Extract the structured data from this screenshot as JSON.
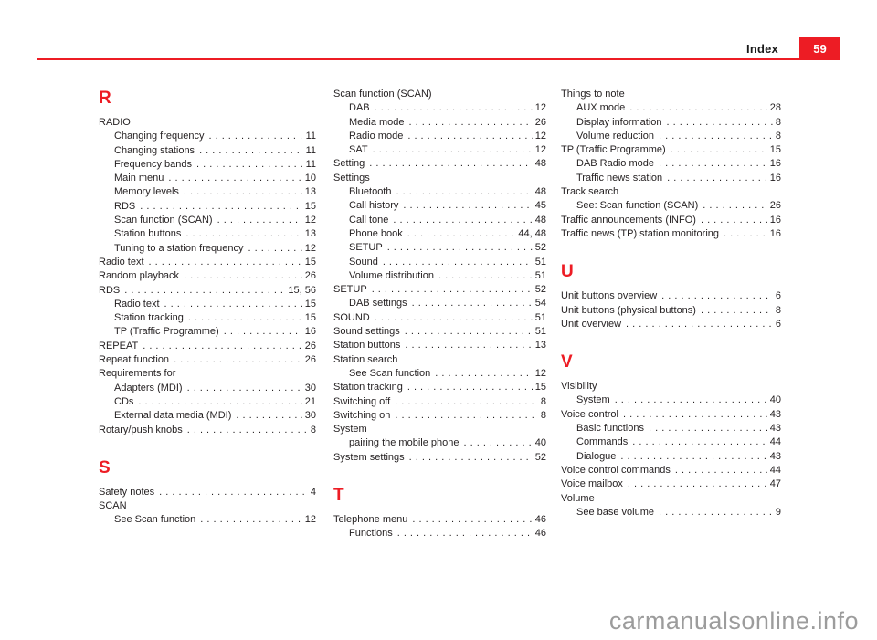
{
  "header": {
    "label": "Index",
    "page_number": "59"
  },
  "watermark": "carmanualsonline.info",
  "colors": {
    "accent": "#ed1c24",
    "text": "#231f20",
    "watermark": "#9c9c9c"
  },
  "columns": [
    {
      "items": [
        {
          "type": "letter",
          "text": "R"
        },
        {
          "type": "entry",
          "level": 0,
          "label": "RADIO"
        },
        {
          "type": "entry",
          "level": 1,
          "label": "Changing frequency",
          "page": "11"
        },
        {
          "type": "entry",
          "level": 1,
          "label": "Changing stations",
          "page": "11"
        },
        {
          "type": "entry",
          "level": 1,
          "label": "Frequency bands",
          "page": "11"
        },
        {
          "type": "entry",
          "level": 1,
          "label": "Main menu",
          "page": "10"
        },
        {
          "type": "entry",
          "level": 1,
          "label": "Memory levels",
          "page": "13"
        },
        {
          "type": "entry",
          "level": 1,
          "label": "RDS",
          "page": "15"
        },
        {
          "type": "entry",
          "level": 1,
          "label": "Scan function (SCAN)",
          "page": "12"
        },
        {
          "type": "entry",
          "level": 1,
          "label": "Station buttons",
          "page": "13"
        },
        {
          "type": "entry",
          "level": 1,
          "label": "Tuning to a station frequency",
          "page": "12"
        },
        {
          "type": "entry",
          "level": 0,
          "label": "Radio text",
          "page": "15"
        },
        {
          "type": "entry",
          "level": 0,
          "label": "Random playback",
          "page": "26"
        },
        {
          "type": "entry",
          "level": 0,
          "label": "RDS",
          "page": "15, 56"
        },
        {
          "type": "entry",
          "level": 1,
          "label": "Radio text",
          "page": "15"
        },
        {
          "type": "entry",
          "level": 1,
          "label": "Station tracking",
          "page": "15"
        },
        {
          "type": "entry",
          "level": 1,
          "label": "TP (Traffic Programme)",
          "page": "16"
        },
        {
          "type": "entry",
          "level": 0,
          "label": "REPEAT",
          "page": "26"
        },
        {
          "type": "entry",
          "level": 0,
          "label": "Repeat function",
          "page": "26"
        },
        {
          "type": "entry",
          "level": 0,
          "label": "Requirements for"
        },
        {
          "type": "entry",
          "level": 1,
          "label": "Adapters (MDI)",
          "page": "30"
        },
        {
          "type": "entry",
          "level": 1,
          "label": "CDs",
          "page": "21"
        },
        {
          "type": "entry",
          "level": 1,
          "label": "External data media (MDI)",
          "page": "30"
        },
        {
          "type": "entry",
          "level": 0,
          "label": "Rotary/push knobs",
          "page": "8"
        },
        {
          "type": "letter",
          "text": "S"
        },
        {
          "type": "entry",
          "level": 0,
          "label": "Safety notes",
          "page": "4"
        },
        {
          "type": "entry",
          "level": 0,
          "label": "SCAN"
        },
        {
          "type": "entry",
          "level": 1,
          "label": "See Scan function",
          "page": "12"
        }
      ]
    },
    {
      "items": [
        {
          "type": "entry",
          "level": 0,
          "label": "Scan function (SCAN)"
        },
        {
          "type": "entry",
          "level": 1,
          "label": "DAB",
          "page": "12"
        },
        {
          "type": "entry",
          "level": 1,
          "label": "Media mode",
          "page": "26"
        },
        {
          "type": "entry",
          "level": 1,
          "label": "Radio mode",
          "page": "12"
        },
        {
          "type": "entry",
          "level": 1,
          "label": "SAT",
          "page": "12"
        },
        {
          "type": "entry",
          "level": 0,
          "label": "Setting",
          "page": "48"
        },
        {
          "type": "entry",
          "level": 0,
          "label": "Settings"
        },
        {
          "type": "entry",
          "level": 1,
          "label": "Bluetooth",
          "page": "48"
        },
        {
          "type": "entry",
          "level": 1,
          "label": "Call history",
          "page": "45"
        },
        {
          "type": "entry",
          "level": 1,
          "label": "Call tone",
          "page": "48"
        },
        {
          "type": "entry",
          "level": 1,
          "label": "Phone book",
          "page": "44, 48"
        },
        {
          "type": "entry",
          "level": 1,
          "label": "SETUP",
          "page": "52"
        },
        {
          "type": "entry",
          "level": 1,
          "label": "Sound",
          "page": "51"
        },
        {
          "type": "entry",
          "level": 1,
          "label": "Volume distribution",
          "page": "51"
        },
        {
          "type": "entry",
          "level": 0,
          "label": "SETUP",
          "page": "52"
        },
        {
          "type": "entry",
          "level": 1,
          "label": "DAB settings",
          "page": "54"
        },
        {
          "type": "entry",
          "level": 0,
          "label": "SOUND",
          "page": "51"
        },
        {
          "type": "entry",
          "level": 0,
          "label": "Sound settings",
          "page": "51"
        },
        {
          "type": "entry",
          "level": 0,
          "label": "Station buttons",
          "page": "13"
        },
        {
          "type": "entry",
          "level": 0,
          "label": "Station search"
        },
        {
          "type": "entry",
          "level": 1,
          "label": "See Scan function",
          "page": "12"
        },
        {
          "type": "entry",
          "level": 0,
          "label": "Station tracking",
          "page": "15"
        },
        {
          "type": "entry",
          "level": 0,
          "label": "Switching off",
          "page": "8"
        },
        {
          "type": "entry",
          "level": 0,
          "label": "Switching on",
          "page": "8"
        },
        {
          "type": "entry",
          "level": 0,
          "label": "System"
        },
        {
          "type": "entry",
          "level": 1,
          "label": "pairing the mobile phone",
          "page": "40"
        },
        {
          "type": "entry",
          "level": 0,
          "label": "System settings",
          "page": "52"
        },
        {
          "type": "letter",
          "text": "T"
        },
        {
          "type": "entry",
          "level": 0,
          "label": "Telephone menu",
          "page": "46"
        },
        {
          "type": "entry",
          "level": 1,
          "label": "Functions",
          "page": "46"
        }
      ]
    },
    {
      "items": [
        {
          "type": "entry",
          "level": 0,
          "label": "Things to note"
        },
        {
          "type": "entry",
          "level": 1,
          "label": "AUX mode",
          "page": "28"
        },
        {
          "type": "entry",
          "level": 1,
          "label": "Display information",
          "page": "8"
        },
        {
          "type": "entry",
          "level": 1,
          "label": "Volume reduction",
          "page": "8"
        },
        {
          "type": "entry",
          "level": 0,
          "label": "TP (Traffic Programme)",
          "page": "15"
        },
        {
          "type": "entry",
          "level": 1,
          "label": "DAB Radio mode",
          "page": "16"
        },
        {
          "type": "entry",
          "level": 1,
          "label": "Traffic news station",
          "page": "16"
        },
        {
          "type": "entry",
          "level": 0,
          "label": "Track search"
        },
        {
          "type": "entry",
          "level": 1,
          "label": "See: Scan function (SCAN)",
          "page": "26"
        },
        {
          "type": "entry",
          "level": 0,
          "label": "Traffic announcements (INFO)",
          "page": "16"
        },
        {
          "type": "entry",
          "level": 0,
          "label": "Traffic news (TP) station monitoring",
          "page": "16"
        },
        {
          "type": "letter",
          "text": "U"
        },
        {
          "type": "entry",
          "level": 0,
          "label": "Unit buttons overview",
          "page": "6"
        },
        {
          "type": "entry",
          "level": 0,
          "label": "Unit buttons (physical buttons)",
          "page": "8"
        },
        {
          "type": "entry",
          "level": 0,
          "label": "Unit overview",
          "page": "6"
        },
        {
          "type": "letter",
          "text": "V"
        },
        {
          "type": "entry",
          "level": 0,
          "label": "Visibility"
        },
        {
          "type": "entry",
          "level": 1,
          "label": "System",
          "page": "40"
        },
        {
          "type": "entry",
          "level": 0,
          "label": "Voice control",
          "page": "43"
        },
        {
          "type": "entry",
          "level": 1,
          "label": "Basic functions",
          "page": "43"
        },
        {
          "type": "entry",
          "level": 1,
          "label": "Commands",
          "page": "44"
        },
        {
          "type": "entry",
          "level": 1,
          "label": "Dialogue",
          "page": "43"
        },
        {
          "type": "entry",
          "level": 0,
          "label": "Voice control commands",
          "page": "44"
        },
        {
          "type": "entry",
          "level": 0,
          "label": "Voice mailbox",
          "page": "47"
        },
        {
          "type": "entry",
          "level": 0,
          "label": "Volume"
        },
        {
          "type": "entry",
          "level": 1,
          "label": "See base volume",
          "page": "9"
        }
      ]
    }
  ]
}
